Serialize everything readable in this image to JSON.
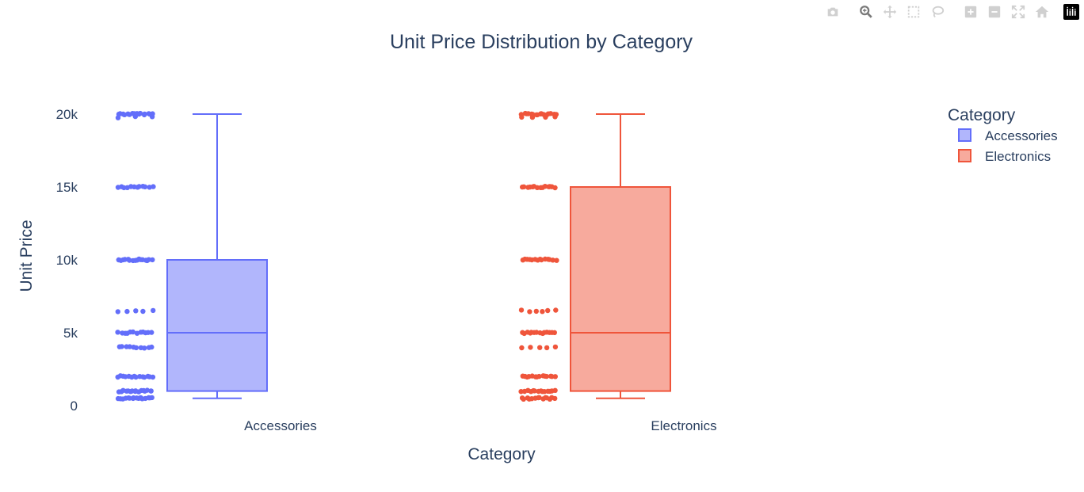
{
  "modebar": {
    "buttons": [
      {
        "name": "camera-icon",
        "title": "Download plot as a png"
      },
      {
        "name": "zoom-icon",
        "title": "Zoom"
      },
      {
        "name": "pan-icon",
        "title": "Pan"
      },
      {
        "name": "box-select-icon",
        "title": "Box Select"
      },
      {
        "name": "lasso-select-icon",
        "title": "Lasso Select"
      },
      {
        "name": "zoom-in-icon",
        "title": "Zoom in"
      },
      {
        "name": "zoom-out-icon",
        "title": "Zoom out"
      },
      {
        "name": "autoscale-icon",
        "title": "Autoscale"
      },
      {
        "name": "reset-axes-icon",
        "title": "Reset axes"
      }
    ],
    "active": "zoom-icon",
    "icon_color": "#d0d0d0",
    "active_color": "#7a7a7a"
  },
  "chart_data": {
    "type": "box",
    "title": "Unit Price Distribution by Category",
    "xlabel": "Category",
    "ylabel": "Unit Price",
    "categories": [
      "Accessories",
      "Electronics"
    ],
    "yticks": [
      0,
      5000,
      10000,
      15000,
      20000
    ],
    "ytick_labels": [
      "0",
      "5k",
      "10k",
      "15k",
      "20k"
    ],
    "ylim": [
      0,
      20500
    ],
    "grid": false,
    "legend": {
      "title": "Category",
      "placement": "top-right"
    },
    "series": [
      {
        "name": "Accessories",
        "color": "#636efa",
        "fill": "#b1b6fc",
        "min": 500,
        "q1": 1000,
        "median": 5000,
        "q3": 10000,
        "max": 20000,
        "points": [
          {
            "value": 20000,
            "count": 16
          },
          {
            "value": 19800,
            "count": 3
          },
          {
            "value": 15000,
            "count": 12
          },
          {
            "value": 10000,
            "count": 16
          },
          {
            "value": 6500,
            "count": 5
          },
          {
            "value": 5000,
            "count": 12
          },
          {
            "value": 4000,
            "count": 10
          },
          {
            "value": 2000,
            "count": 14
          },
          {
            "value": 1000,
            "count": 16
          },
          {
            "value": 500,
            "count": 16
          }
        ]
      },
      {
        "name": "Electronics",
        "color": "#ef553b",
        "fill": "#f7aa9d",
        "min": 500,
        "q1": 1000,
        "median": 5000,
        "q3": 15000,
        "max": 20000,
        "points": [
          {
            "value": 20000,
            "count": 16
          },
          {
            "value": 19800,
            "count": 4
          },
          {
            "value": 15000,
            "count": 14
          },
          {
            "value": 10000,
            "count": 14
          },
          {
            "value": 6500,
            "count": 6
          },
          {
            "value": 5000,
            "count": 14
          },
          {
            "value": 4000,
            "count": 5
          },
          {
            "value": 2000,
            "count": 14
          },
          {
            "value": 1000,
            "count": 14
          },
          {
            "value": 500,
            "count": 14
          }
        ]
      }
    ]
  }
}
